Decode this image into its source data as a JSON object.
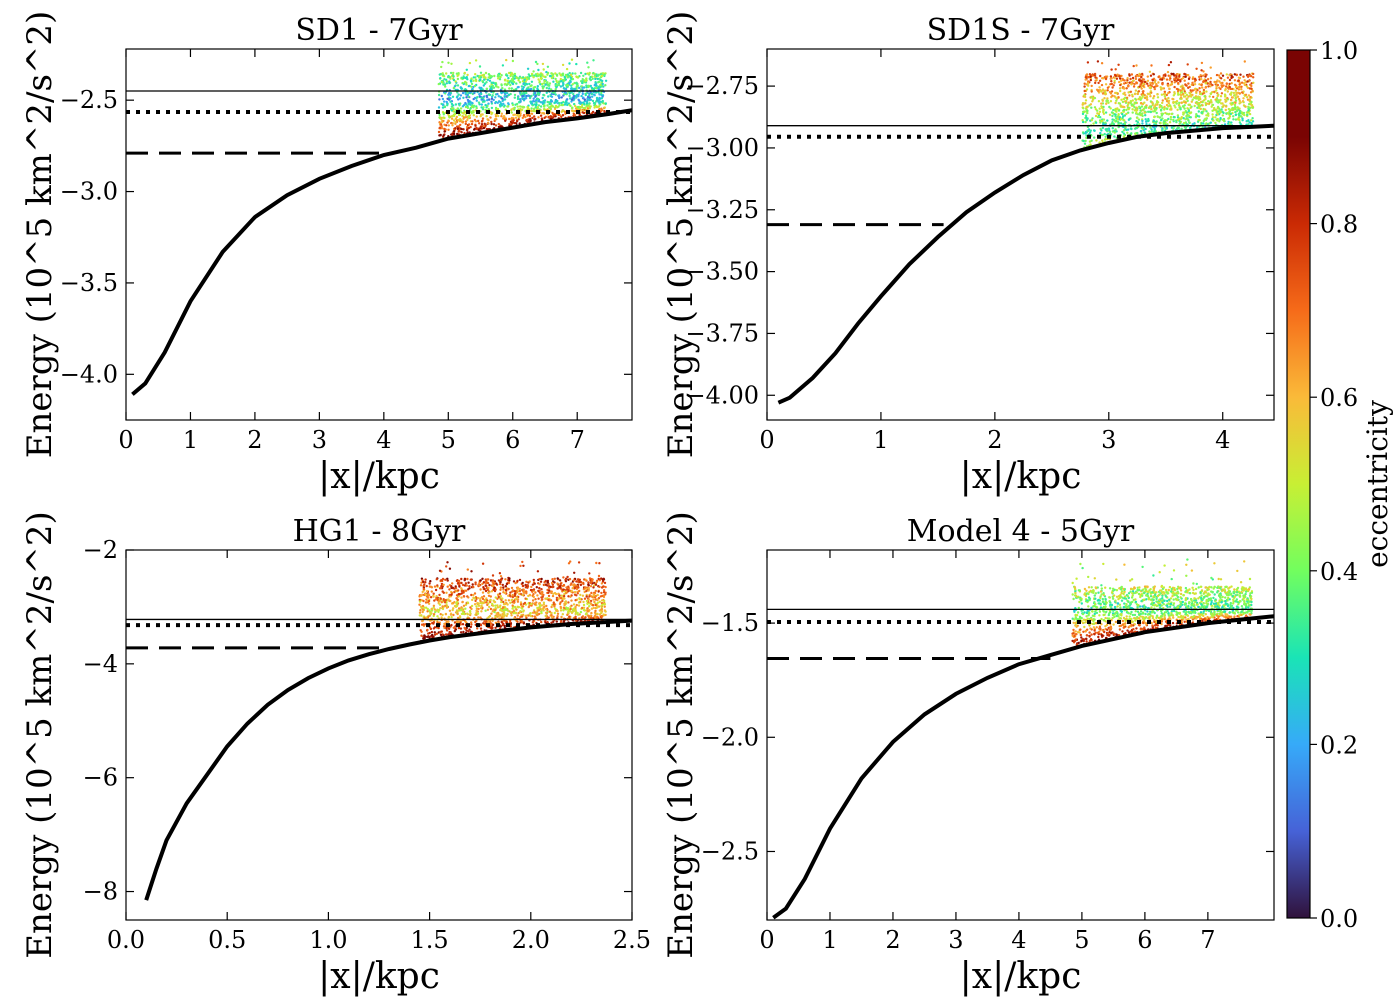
{
  "figure": {
    "colorbar": {
      "label": "eccentricity",
      "ticks": [
        0.0,
        0.2,
        0.4,
        0.6,
        0.8,
        1.0
      ],
      "tick_labels": [
        "0.0",
        "0.2",
        "0.4",
        "0.6",
        "0.8",
        "1.0"
      ],
      "colormap": "turbo"
    }
  },
  "chart_data": [
    {
      "type": "scatter",
      "title": "SD1 - 7Gyr",
      "xlabel": "|x|/kpc",
      "ylabel": "Energy (10^5 km^2/s^2)",
      "xlim": [
        0,
        7.85
      ],
      "ylim": [
        -4.25,
        -2.22
      ],
      "xticks": [
        0,
        1,
        2,
        3,
        4,
        5,
        6,
        7
      ],
      "xtick_labels": [
        "0",
        "1",
        "2",
        "3",
        "4",
        "5",
        "6",
        "7"
      ],
      "yticks": [
        -4.0,
        -3.5,
        -3.0,
        -2.5
      ],
      "ytick_labels": [
        "−4.0",
        "−3.5",
        "−3.0",
        "−2.5"
      ],
      "curve": {
        "x": [
          0.1,
          0.3,
          0.6,
          1.0,
          1.5,
          2.0,
          2.5,
          3.0,
          3.5,
          4.0,
          4.5,
          5.0,
          5.5,
          6.0,
          6.5,
          7.0,
          7.5,
          7.85
        ],
        "y": [
          -4.11,
          -4.05,
          -3.88,
          -3.6,
          -3.33,
          -3.14,
          -3.02,
          -2.93,
          -2.86,
          -2.8,
          -2.76,
          -2.71,
          -2.68,
          -2.65,
          -2.62,
          -2.6,
          -2.575,
          -2.555
        ]
      },
      "hline_solid": -2.45,
      "hline_dotted": -2.565,
      "hline_dashed": {
        "y": -2.79,
        "x_end": 4.0
      },
      "scatter": {
        "x_range": [
          4.85,
          7.45
        ],
        "y_top": -2.35,
        "y_top_sparse": -2.27,
        "ecc_top": 0.45,
        "ecc_mid": 0.2,
        "ecc_low": 0.95,
        "mid_y": -2.5
      }
    },
    {
      "type": "scatter",
      "title": "SD1S - 7Gyr",
      "xlabel": "|x|/kpc",
      "ylabel": "Energy (10^5 km^2/s^2)",
      "xlim": [
        0,
        4.45
      ],
      "ylim": [
        -4.1,
        -2.6
      ],
      "xticks": [
        0,
        1,
        2,
        3,
        4
      ],
      "xtick_labels": [
        "0",
        "1",
        "2",
        "3",
        "4"
      ],
      "yticks": [
        -4.0,
        -3.75,
        -3.5,
        -3.25,
        -3.0,
        -2.75
      ],
      "ytick_labels": [
        "−4.00",
        "−3.75",
        "−3.50",
        "−3.25",
        "−3.00",
        "−2.75"
      ],
      "curve": {
        "x": [
          0.1,
          0.2,
          0.4,
          0.6,
          0.8,
          1.0,
          1.25,
          1.5,
          1.75,
          2.0,
          2.25,
          2.5,
          2.75,
          3.0,
          3.25,
          3.5,
          3.75,
          4.0,
          4.25,
          4.45
        ],
        "y": [
          -4.03,
          -4.01,
          -3.93,
          -3.83,
          -3.71,
          -3.6,
          -3.47,
          -3.36,
          -3.26,
          -3.18,
          -3.11,
          -3.05,
          -3.01,
          -2.98,
          -2.955,
          -2.94,
          -2.93,
          -2.92,
          -2.915,
          -2.91
        ]
      },
      "hline_solid": -2.91,
      "hline_dotted": -2.955,
      "hline_dashed": {
        "y": -3.31,
        "x_end": 1.55
      },
      "scatter": {
        "x_range": [
          2.77,
          4.27
        ],
        "y_top": -2.7,
        "y_top_sparse": -2.65,
        "ecc_top": 0.75,
        "ecc_mid": 0.3,
        "ecc_low": 0.5,
        "mid_y": -2.93
      }
    },
    {
      "type": "scatter",
      "title": "HG1 - 8Gyr",
      "xlabel": "|x|/kpc",
      "ylabel": "Energy (10^5 km^2/s^2)",
      "xlim": [
        0,
        2.5
      ],
      "ylim": [
        -8.5,
        -2.0
      ],
      "xticks": [
        0.0,
        0.5,
        1.0,
        1.5,
        2.0,
        2.5
      ],
      "xtick_labels": [
        "0.0",
        "0.5",
        "1.0",
        "1.5",
        "2.0",
        "2.5"
      ],
      "yticks": [
        -8,
        -6,
        -4,
        -2
      ],
      "ytick_labels": [
        "−8",
        "−6",
        "−4",
        "−2"
      ],
      "curve": {
        "x": [
          0.1,
          0.15,
          0.2,
          0.3,
          0.4,
          0.5,
          0.6,
          0.7,
          0.8,
          0.9,
          1.0,
          1.1,
          1.2,
          1.3,
          1.4,
          1.5,
          1.6,
          1.8,
          2.0,
          2.2,
          2.5
        ],
        "y": [
          -8.15,
          -7.6,
          -7.1,
          -6.45,
          -5.95,
          -5.45,
          -5.05,
          -4.72,
          -4.46,
          -4.25,
          -4.08,
          -3.94,
          -3.83,
          -3.74,
          -3.66,
          -3.59,
          -3.53,
          -3.44,
          -3.36,
          -3.3,
          -3.24
        ]
      },
      "hline_solid": -3.22,
      "hline_dotted": -3.32,
      "hline_dashed": {
        "y": -3.72,
        "x_end": 1.3
      },
      "scatter": {
        "x_range": [
          1.45,
          2.37
        ],
        "y_top": -2.5,
        "y_top_sparse": -2.2,
        "ecc_top": 0.8,
        "ecc_mid": 0.55,
        "ecc_low": 0.9,
        "mid_y": -3.1
      }
    },
    {
      "type": "scatter",
      "title": "Model 4 - 5Gyr",
      "xlabel": "|x|/kpc",
      "ylabel": "Energy (10^5 km^2/s^2)",
      "xlim": [
        0,
        8.05
      ],
      "ylim": [
        -2.8,
        -1.18
      ],
      "xticks": [
        0,
        1,
        2,
        3,
        4,
        5,
        6,
        7
      ],
      "xtick_labels": [
        "0",
        "1",
        "2",
        "3",
        "4",
        "5",
        "6",
        "7"
      ],
      "yticks": [
        -2.5,
        -2.0,
        -1.5
      ],
      "ytick_labels": [
        "−2.5",
        "−2.0",
        "−1.5"
      ],
      "curve": {
        "x": [
          0.1,
          0.3,
          0.6,
          1.0,
          1.5,
          2.0,
          2.5,
          3.0,
          3.5,
          4.0,
          4.5,
          5.0,
          5.5,
          6.0,
          6.5,
          7.0,
          7.5,
          8.05
        ],
        "y": [
          -2.79,
          -2.75,
          -2.62,
          -2.4,
          -2.18,
          -2.02,
          -1.9,
          -1.81,
          -1.74,
          -1.68,
          -1.64,
          -1.6,
          -1.57,
          -1.54,
          -1.52,
          -1.5,
          -1.485,
          -1.47
        ]
      },
      "hline_solid": -1.44,
      "hline_dotted": -1.495,
      "hline_dashed": {
        "y": -1.655,
        "x_end": 4.5
      },
      "scatter": {
        "x_range": [
          4.85,
          7.7
        ],
        "y_top": -1.34,
        "y_top_sparse": -1.22,
        "ecc_top": 0.5,
        "ecc_mid": 0.35,
        "ecc_low": 0.9,
        "mid_y": -1.45
      }
    }
  ]
}
